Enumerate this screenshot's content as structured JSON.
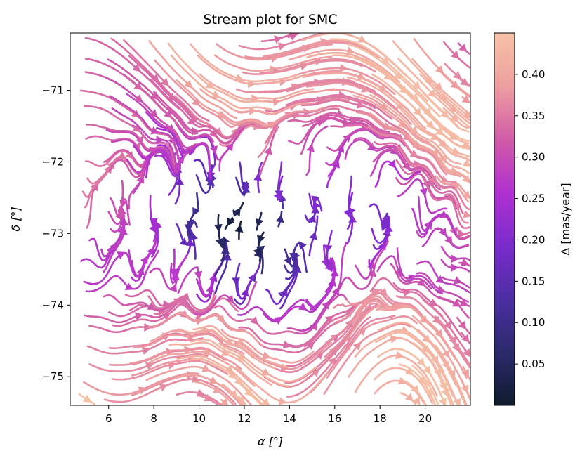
{
  "chart_data": {
    "type": "streamplot",
    "title": "Stream plot for SMC",
    "xlabel": "α [°]",
    "ylabel": "δ [°]",
    "xlim": [
      4.3,
      22.0
    ],
    "ylim": [
      -75.4,
      -70.2
    ],
    "xticks": [
      6,
      8,
      10,
      12,
      14,
      16,
      18,
      20
    ],
    "yticks": [
      -71,
      -72,
      -73,
      -74,
      -75
    ],
    "grid": false,
    "colorbar": {
      "label": "Δ [mas/year]",
      "range": [
        0.0,
        0.45
      ],
      "ticks": [
        0.05,
        0.1,
        0.15,
        0.2,
        0.25,
        0.3,
        0.35,
        0.4
      ],
      "colormap": [
        "#0f1b2d",
        "#2b2a6a",
        "#4a2ea0",
        "#7a2ccc",
        "#b030d0",
        "#d05aa8",
        "#eea0a0",
        "#f6c2a6"
      ]
    },
    "field": {
      "description_of_regions": {
        "outer_flow": "long streamlines, mostly horizontal, magnitude 0.20-0.40",
        "central_core": "short tangled streamlines, magnitude 0.05-0.20, centered near α≈12.5, δ≈-72.9"
      },
      "core_center": [
        12.5,
        -72.9
      ],
      "core_radius_x": 8.5,
      "core_radius_y": 1.3
    }
  }
}
